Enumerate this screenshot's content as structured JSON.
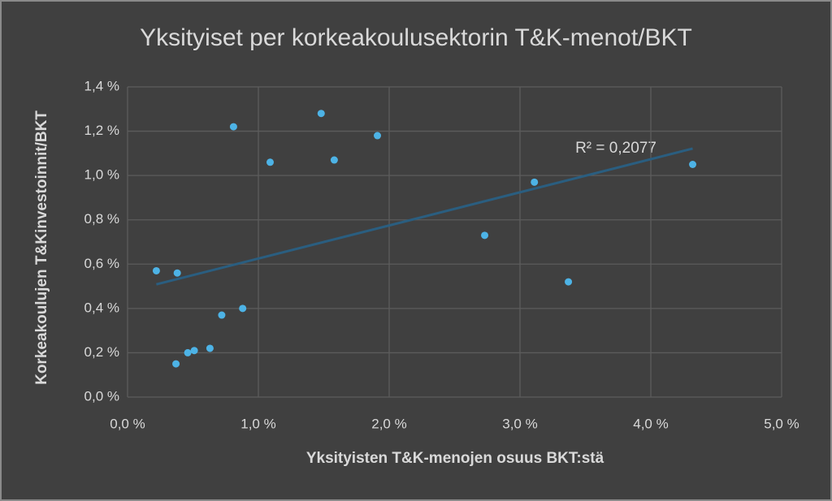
{
  "chart_data": {
    "type": "scatter",
    "title": "Yksityiset per korkeakoulusektorin T&K-menot/BKT",
    "x_label": "Yksityisten T&K-menojen osuus BKT:stä",
    "y_label": "Korkeakoulujen T&Kinvestoinnit/BKT",
    "annotation": "R² = 0,2077",
    "trendline": "linear",
    "color": "#4db3e6",
    "trend_color": "#2a5e80",
    "grid": true,
    "x": [
      0.22,
      0.38,
      0.37,
      0.46,
      0.51,
      0.63,
      0.72,
      0.88,
      0.81,
      1.09,
      1.48,
      1.58,
      1.91,
      2.73,
      3.11,
      3.37,
      4.32
    ],
    "values": [
      0.57,
      0.56,
      0.15,
      0.2,
      0.21,
      0.22,
      0.37,
      0.4,
      1.22,
      1.06,
      1.28,
      1.07,
      1.18,
      0.73,
      0.97,
      0.52,
      1.05
    ],
    "xlim": [
      0,
      5
    ],
    "xticks": [
      {
        "value": 0,
        "label": "0,0 %"
      },
      {
        "value": 1,
        "label": "1,0 %"
      },
      {
        "value": 2,
        "label": "2,0 %"
      },
      {
        "value": 3,
        "label": "3,0 %"
      },
      {
        "value": 4,
        "label": "4,0 %"
      },
      {
        "value": 5,
        "label": "5,0 %"
      }
    ],
    "ylim": [
      0,
      1.4
    ],
    "yticks": [
      {
        "value": 0,
        "label": "0,0 %"
      },
      {
        "value": 0.2,
        "label": "0,2 %"
      },
      {
        "value": 0.4,
        "label": "0,4 %"
      },
      {
        "value": 0.6,
        "label": "0,6 %"
      },
      {
        "value": 0.8,
        "label": "0,8 %"
      },
      {
        "value": 1.0,
        "label": "1,0 %"
      },
      {
        "value": 1.2,
        "label": "1,2 %"
      },
      {
        "value": 1.4,
        "label": "1,4 %"
      }
    ]
  }
}
